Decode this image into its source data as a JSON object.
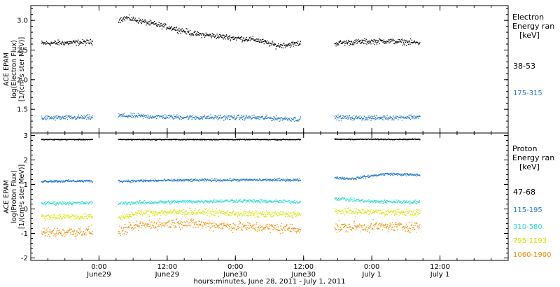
{
  "chart_data": [
    {
      "type": "scatter",
      "panel": "electron",
      "ylabel_lines": [
        "ACE EPAM",
        "log(Electron Flux)",
        "[1/(cm²s ster MeV)]"
      ],
      "ylim": [
        1.1,
        3.25
      ],
      "yticks": [
        1.5,
        2.0,
        2.5,
        3.0
      ],
      "ytick_labels": [
        "1.5",
        "2.0",
        "2.5",
        "3.0"
      ],
      "grid": false,
      "legend_title_lines": [
        "Electron",
        "Energy ran",
        "[keV]"
      ],
      "series": [
        {
          "name": "38-53",
          "color": "#000000",
          "noise": 0.045,
          "segments": [
            {
              "x": [
                0.15,
                0.9
              ],
              "y": [
                2.62,
                2.64
              ]
            },
            {
              "x": [
                1.28,
                1.4,
                1.7,
                2.1,
                2.4,
                2.9,
                3.3,
                3.6,
                3.95
              ],
              "y": [
                3.02,
                3.05,
                2.97,
                2.87,
                2.78,
                2.72,
                2.68,
                2.58,
                2.62
              ]
            },
            {
              "x": [
                4.45,
                4.7,
                5.2,
                5.7
              ],
              "y": [
                2.62,
                2.64,
                2.66,
                2.63
              ]
            }
          ]
        },
        {
          "name": "175-315",
          "color": "#1f77c9",
          "noise": 0.04,
          "segments": [
            {
              "x": [
                0.15,
                0.9
              ],
              "y": [
                1.36,
                1.37
              ]
            },
            {
              "x": [
                1.28,
                1.6,
                2.4,
                3.2,
                3.95
              ],
              "y": [
                1.4,
                1.39,
                1.37,
                1.37,
                1.34
              ]
            },
            {
              "x": [
                4.45,
                5.0,
                5.7
              ],
              "y": [
                1.37,
                1.36,
                1.38
              ]
            }
          ]
        }
      ]
    },
    {
      "type": "scatter",
      "panel": "proton",
      "ylabel_lines": [
        "ACE EPAM",
        "log(Proton Flux)",
        "[1/(cm²s ster MeV)]"
      ],
      "ylim": [
        -2.1,
        3.1
      ],
      "yticks": [
        -2,
        -1,
        0,
        1,
        2,
        3
      ],
      "ytick_labels": [
        "-2",
        "-1",
        "0",
        "1",
        "2",
        "3"
      ],
      "grid": false,
      "legend_title_lines": [
        "Proton",
        "Energy ran",
        "[keV]"
      ],
      "series": [
        {
          "name": "47-68",
          "color": "#000000",
          "noise": 0.02,
          "segments": [
            {
              "x": [
                0.15,
                0.9
              ],
              "y": [
                2.85,
                2.85
              ]
            },
            {
              "x": [
                1.28,
                3.95
              ],
              "y": [
                2.85,
                2.85
              ]
            },
            {
              "x": [
                4.45,
                5.7
              ],
              "y": [
                2.86,
                2.86
              ]
            }
          ]
        },
        {
          "name": "115-195",
          "color": "#1f77c9",
          "noise": 0.05,
          "segments": [
            {
              "x": [
                0.15,
                0.9
              ],
              "y": [
                1.15,
                1.16
              ]
            },
            {
              "x": [
                1.28,
                2.0,
                3.0,
                3.95
              ],
              "y": [
                1.15,
                1.18,
                1.2,
                1.2
              ]
            },
            {
              "x": [
                4.45,
                4.7,
                5.2,
                5.7
              ],
              "y": [
                1.3,
                1.25,
                1.45,
                1.4
              ]
            }
          ]
        },
        {
          "name": "310-580",
          "color": "#2fd8d8",
          "noise": 0.07,
          "segments": [
            {
              "x": [
                0.15,
                0.9
              ],
              "y": [
                0.25,
                0.26
              ]
            },
            {
              "x": [
                1.28,
                2.0,
                3.0,
                3.95
              ],
              "y": [
                0.25,
                0.3,
                0.35,
                0.3
              ]
            },
            {
              "x": [
                4.45,
                5.0,
                5.7
              ],
              "y": [
                0.45,
                0.32,
                0.3
              ]
            }
          ]
        },
        {
          "name": "795-1193",
          "color": "#d4e600",
          "noise": 0.13,
          "segments": [
            {
              "x": [
                0.15,
                0.9
              ],
              "y": [
                -0.3,
                -0.3
              ]
            },
            {
              "x": [
                1.28,
                1.6,
                2.4,
                3.2,
                3.95
              ],
              "y": [
                -0.35,
                -0.15,
                -0.1,
                -0.2,
                -0.2
              ]
            },
            {
              "x": [
                4.45,
                5.0,
                5.7
              ],
              "y": [
                -0.1,
                -0.1,
                -0.15
              ]
            }
          ]
        },
        {
          "name": "1060-1900",
          "color": "#f08a00",
          "noise": 0.2,
          "segments": [
            {
              "x": [
                0.15,
                0.9
              ],
              "y": [
                -0.95,
                -0.9
              ]
            },
            {
              "x": [
                1.28,
                1.6,
                2.2,
                3.0,
                3.95
              ],
              "y": [
                -0.9,
                -0.65,
                -0.55,
                -0.7,
                -0.8
              ]
            },
            {
              "x": [
                4.45,
                5.0,
                5.7
              ],
              "y": [
                -0.75,
                -0.7,
                -0.7
              ]
            }
          ]
        }
      ]
    }
  ],
  "x_axis": {
    "xlim": [
      0,
      7
    ],
    "major_ticks": [
      1,
      2,
      3,
      4,
      5,
      6
    ],
    "tick_labels": [
      {
        "x": 1,
        "time": "0:00",
        "day": "June29"
      },
      {
        "x": 2,
        "time": "12:00",
        "day": "June29"
      },
      {
        "x": 3,
        "time": "0:00",
        "day": "June30"
      },
      {
        "x": 4,
        "time": "12:00",
        "day": "June30"
      },
      {
        "x": 5,
        "time": "0:00",
        "day": "July 1"
      },
      {
        "x": 6,
        "time": "12:00",
        "day": "July 1"
      }
    ],
    "xlabel": "hours:minutes, June 28, 2011 - July  1, 2011"
  }
}
